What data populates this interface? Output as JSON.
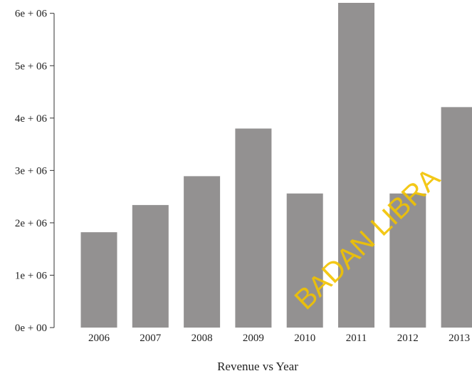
{
  "chart_data": {
    "type": "bar",
    "title": "",
    "xlabel": "Revenue vs Year",
    "ylabel": "",
    "categories": [
      "2006",
      "2007",
      "2008",
      "2009",
      "2010",
      "2011",
      "2012",
      "2013"
    ],
    "values": [
      1820000,
      2340000,
      2890000,
      3800000,
      2560000,
      6200000,
      2560000,
      4210000
    ],
    "ylim": [
      0,
      6200000
    ],
    "yticks": [
      0,
      1000000,
      2000000,
      3000000,
      4000000,
      5000000,
      6000000
    ],
    "ytick_labels": [
      "0e + 00",
      "1e + 06",
      "2e + 06",
      "3e + 06",
      "4e + 06",
      "5e + 06",
      "6e + 06"
    ],
    "grid": false,
    "bar_color": "#939191"
  },
  "watermark": {
    "text": "BADAN LIBRA",
    "color": "#f2c300"
  }
}
